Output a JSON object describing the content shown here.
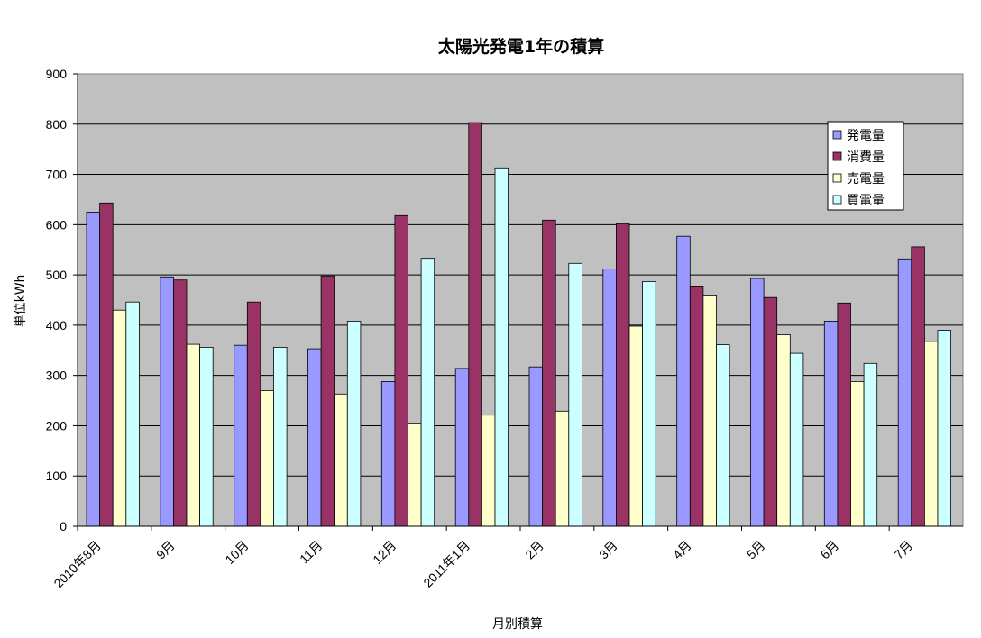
{
  "chart_data": {
    "type": "bar",
    "title": "太陽光発電1年の積算",
    "xlabel": "月別積算",
    "ylabel": "単位kWh",
    "ylim": [
      0,
      900
    ],
    "yticks": [
      0,
      100,
      200,
      300,
      400,
      500,
      600,
      700,
      800,
      900
    ],
    "grid": true,
    "legend_position": "top-right",
    "categories": [
      "2010年8月",
      "9月",
      "10月",
      "11月",
      "12月",
      "2011年1月",
      "2月",
      "3月",
      "4月",
      "5月",
      "6月",
      "7月"
    ],
    "series": [
      {
        "name": "発電量",
        "color": "#9999ff",
        "values": [
          625,
          496,
          360,
          353,
          288,
          314,
          317,
          512,
          577,
          493,
          408,
          532
        ]
      },
      {
        "name": "消費量",
        "color": "#993366",
        "values": [
          643,
          490,
          446,
          498,
          618,
          803,
          609,
          602,
          478,
          455,
          444,
          556
        ]
      },
      {
        "name": "売電量",
        "color": "#ffffcc",
        "values": [
          430,
          362,
          270,
          263,
          205,
          221,
          229,
          398,
          460,
          381,
          288,
          367
        ]
      },
      {
        "name": "買電量",
        "color": "#ccffff",
        "values": [
          446,
          356,
          356,
          408,
          533,
          713,
          523,
          487,
          361,
          344,
          324,
          390
        ]
      }
    ],
    "plot_background": "#c0c0c0"
  }
}
